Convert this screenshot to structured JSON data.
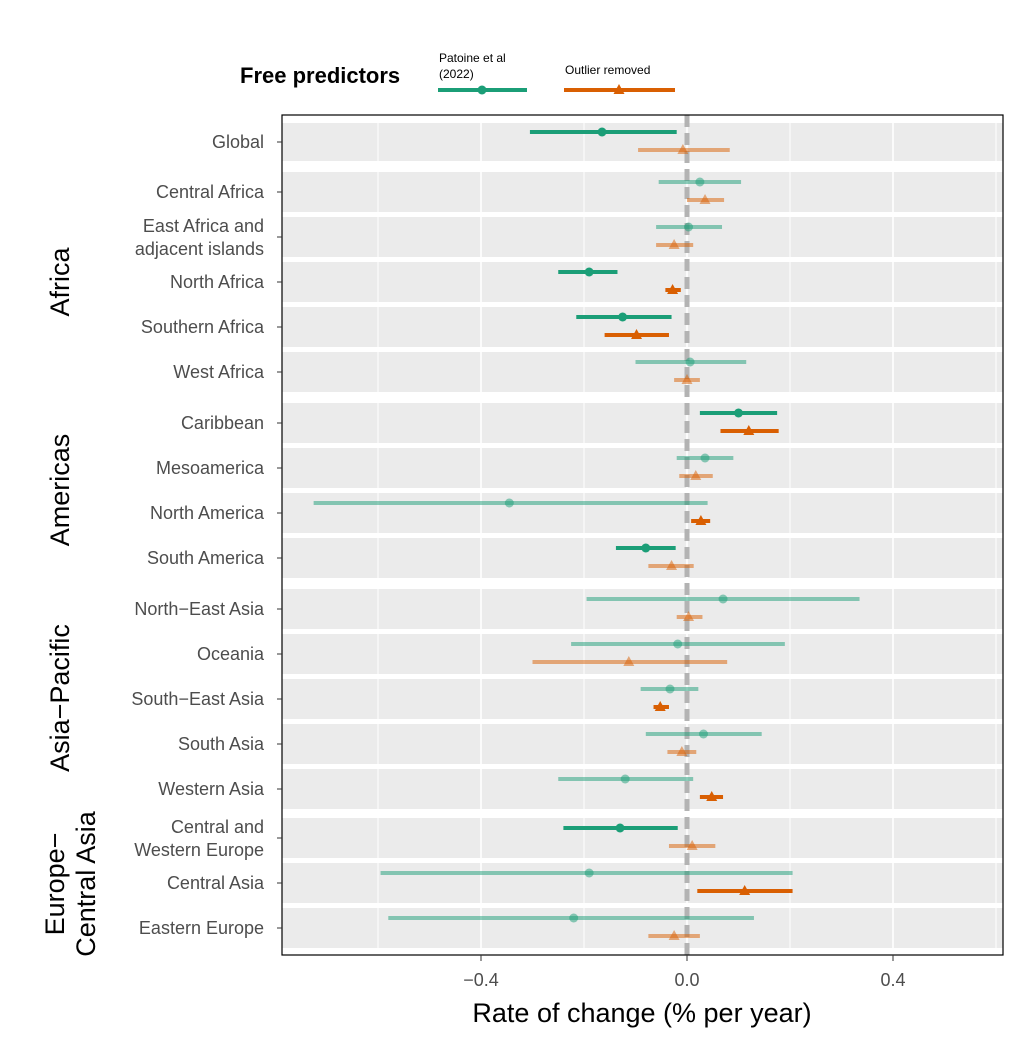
{
  "legend": {
    "title": "Free predictors",
    "items": [
      {
        "label_lines": [
          "Patoine et al",
          "(2022)"
        ],
        "color": "#1b9e77",
        "shape": "circle"
      },
      {
        "label_lines": [
          "Outlier removed"
        ],
        "color": "#d95f02",
        "shape": "triangle"
      }
    ]
  },
  "chart_data": {
    "type": "forest",
    "xlabel": "Rate of change (% per year)",
    "xlim": [
      -0.79,
      0.62
    ],
    "xticks": [
      -0.4,
      0.0,
      0.4
    ],
    "xtick_labels": [
      "−0.4",
      "0.0",
      "0.4"
    ],
    "grid": true,
    "zero_line": true,
    "legend_position": "top",
    "series": [
      {
        "name": "Patoine et al (2022)",
        "color": "#1b9e77",
        "shape": "circle"
      },
      {
        "name": "Outlier removed",
        "color": "#d95f02",
        "shape": "triangle"
      }
    ],
    "groups": [
      {
        "name": "",
        "rows": [
          {
            "label": [
              "Global"
            ],
            "values": [
              {
                "est": -0.165,
                "lo": -0.305,
                "hi": -0.02,
                "significant": true
              },
              {
                "est": -0.008,
                "lo": -0.095,
                "hi": 0.083,
                "significant": false
              }
            ]
          }
        ]
      },
      {
        "name": "Africa",
        "rows": [
          {
            "label": [
              "Central Africa"
            ],
            "values": [
              {
                "est": 0.025,
                "lo": -0.055,
                "hi": 0.105,
                "significant": false
              },
              {
                "est": 0.035,
                "lo": 0.0,
                "hi": 0.072,
                "significant": false
              }
            ]
          },
          {
            "label": [
              "East Africa and",
              "adjacent islands"
            ],
            "values": [
              {
                "est": 0.003,
                "lo": -0.06,
                "hi": 0.068,
                "significant": false
              },
              {
                "est": -0.025,
                "lo": -0.06,
                "hi": 0.012,
                "significant": false
              }
            ]
          },
          {
            "label": [
              "North Africa"
            ],
            "values": [
              {
                "est": -0.19,
                "lo": -0.25,
                "hi": -0.135,
                "significant": true
              },
              {
                "est": -0.028,
                "lo": -0.042,
                "hi": -0.012,
                "significant": true
              }
            ]
          },
          {
            "label": [
              "Southern Africa"
            ],
            "values": [
              {
                "est": -0.125,
                "lo": -0.215,
                "hi": -0.03,
                "significant": true
              },
              {
                "est": -0.098,
                "lo": -0.16,
                "hi": -0.035,
                "significant": true
              }
            ]
          },
          {
            "label": [
              "West Africa"
            ],
            "values": [
              {
                "est": 0.006,
                "lo": -0.1,
                "hi": 0.115,
                "significant": false
              },
              {
                "est": 0.0,
                "lo": -0.025,
                "hi": 0.025,
                "significant": false
              }
            ]
          }
        ]
      },
      {
        "name": "Americas",
        "rows": [
          {
            "label": [
              "Caribbean"
            ],
            "values": [
              {
                "est": 0.1,
                "lo": 0.025,
                "hi": 0.175,
                "significant": true
              },
              {
                "est": 0.12,
                "lo": 0.065,
                "hi": 0.178,
                "significant": true
              }
            ]
          },
          {
            "label": [
              "Mesoamerica"
            ],
            "values": [
              {
                "est": 0.035,
                "lo": -0.02,
                "hi": 0.09,
                "significant": false
              },
              {
                "est": 0.017,
                "lo": -0.015,
                "hi": 0.05,
                "significant": false
              }
            ]
          },
          {
            "label": [
              "North America"
            ],
            "values": [
              {
                "est": -0.345,
                "lo": -0.725,
                "hi": 0.04,
                "significant": false
              },
              {
                "est": 0.027,
                "lo": 0.008,
                "hi": 0.045,
                "significant": true
              }
            ]
          },
          {
            "label": [
              "South America"
            ],
            "values": [
              {
                "est": -0.08,
                "lo": -0.138,
                "hi": -0.022,
                "significant": true
              },
              {
                "est": -0.03,
                "lo": -0.075,
                "hi": 0.013,
                "significant": false
              }
            ]
          }
        ]
      },
      {
        "name": "Asia−Pacific",
        "rows": [
          {
            "label": [
              "North−East Asia"
            ],
            "values": [
              {
                "est": 0.07,
                "lo": -0.195,
                "hi": 0.335,
                "significant": false
              },
              {
                "est": 0.003,
                "lo": -0.02,
                "hi": 0.03,
                "significant": false
              }
            ]
          },
          {
            "label": [
              "Oceania"
            ],
            "values": [
              {
                "est": -0.018,
                "lo": -0.225,
                "hi": 0.19,
                "significant": false
              },
              {
                "est": -0.113,
                "lo": -0.3,
                "hi": 0.078,
                "significant": false
              }
            ]
          },
          {
            "label": [
              "South−East Asia"
            ],
            "values": [
              {
                "est": -0.033,
                "lo": -0.09,
                "hi": 0.022,
                "significant": false
              },
              {
                "est": -0.052,
                "lo": -0.065,
                "hi": -0.035,
                "significant": true
              }
            ]
          },
          {
            "label": [
              "South Asia"
            ],
            "values": [
              {
                "est": 0.032,
                "lo": -0.08,
                "hi": 0.145,
                "significant": false
              },
              {
                "est": -0.01,
                "lo": -0.038,
                "hi": 0.018,
                "significant": false
              }
            ]
          },
          {
            "label": [
              "Western Asia"
            ],
            "values": [
              {
                "est": -0.12,
                "lo": -0.25,
                "hi": 0.012,
                "significant": false
              },
              {
                "est": 0.048,
                "lo": 0.025,
                "hi": 0.07,
                "significant": true
              }
            ]
          }
        ]
      },
      {
        "name": "Europe−\nCentral Asia",
        "rows": [
          {
            "label": [
              "Central and",
              "Western Europe"
            ],
            "values": [
              {
                "est": -0.13,
                "lo": -0.24,
                "hi": -0.018,
                "significant": true
              },
              {
                "est": 0.01,
                "lo": -0.035,
                "hi": 0.055,
                "significant": false
              }
            ]
          },
          {
            "label": [
              "Central Asia"
            ],
            "values": [
              {
                "est": -0.19,
                "lo": -0.595,
                "hi": 0.205,
                "significant": false
              },
              {
                "est": 0.112,
                "lo": 0.02,
                "hi": 0.205,
                "significant": true
              }
            ]
          },
          {
            "label": [
              "Eastern Europe"
            ],
            "values": [
              {
                "est": -0.22,
                "lo": -0.58,
                "hi": 0.13,
                "significant": false
              },
              {
                "est": -0.025,
                "lo": -0.075,
                "hi": 0.025,
                "significant": false
              }
            ]
          }
        ]
      }
    ]
  }
}
